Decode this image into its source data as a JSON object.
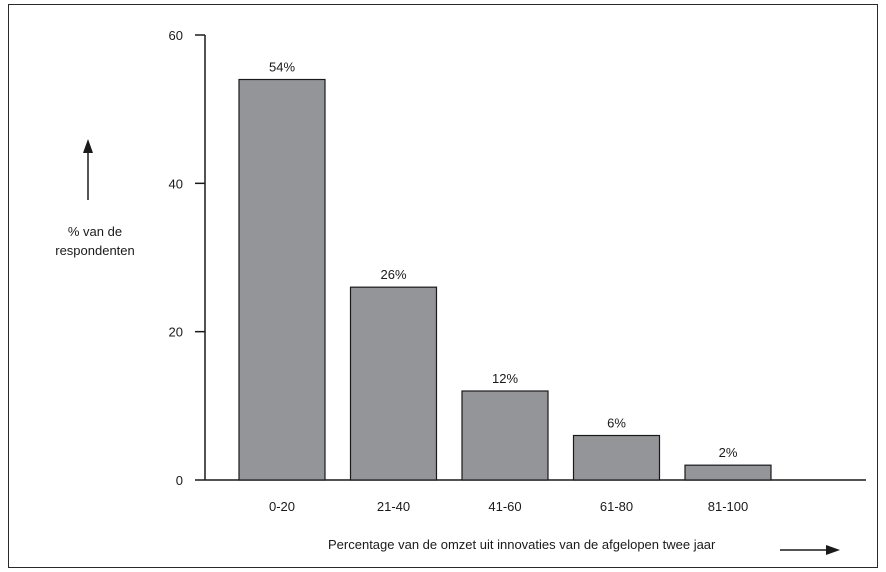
{
  "chart_data": {
    "type": "bar",
    "title": "",
    "xlabel": "Percentage van de omzet uit innovaties van de afgelopen twee jaar",
    "ylabel_lines": [
      "% van de",
      "respondenten"
    ],
    "categories": [
      "0-20",
      "21-40",
      "41-60",
      "61-80",
      "81-100"
    ],
    "values": [
      54,
      26,
      12,
      6,
      2
    ],
    "value_labels": [
      "54%",
      "26%",
      "12%",
      "6%",
      "2%"
    ],
    "ylim": [
      0,
      60
    ],
    "yticks": [
      0,
      20,
      40,
      60
    ],
    "ytick_labels": [
      "0",
      "20",
      "40",
      "60"
    ],
    "grid": false,
    "bar_color": "#939598",
    "edge_color": "#1a1a1a"
  }
}
